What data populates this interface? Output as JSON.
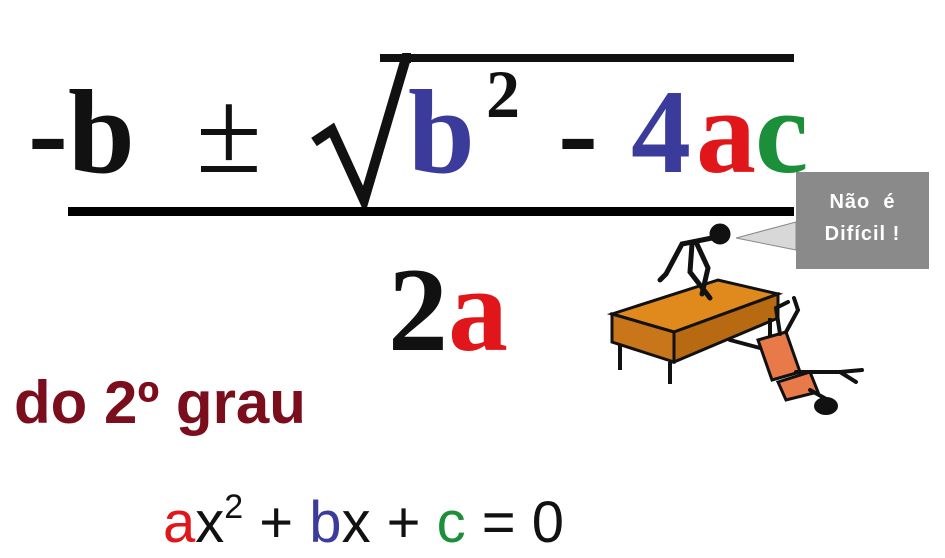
{
  "formula": {
    "numerator": {
      "minus_b": "-b",
      "plus_minus": "±",
      "b_squared": "b",
      "exponent": "2",
      "minus": "-",
      "four": "4",
      "a": "a",
      "c": "c"
    },
    "denominator": {
      "two": "2",
      "a": "a"
    }
  },
  "subtitle": "do 2º grau",
  "equation": {
    "a": "a",
    "x": "x",
    "exp": "2",
    "plus1": " + ",
    "b": "b",
    "x2": "x",
    "plus2": " + ",
    "c": "c",
    "equals": " = 0"
  },
  "speech_bubble": {
    "line1": "Não  é",
    "line2": "Difícil !"
  },
  "colors": {
    "black": "#111111",
    "blue": "#3b3b9c",
    "red": "#e0161b",
    "green": "#1c8f3a",
    "dark_red": "#7a0e1c",
    "bubble_gray": "#8a8a8a",
    "desk_orange": "#e08a1e"
  },
  "icons": [
    "radical-sign-icon",
    "person-on-desk-icon",
    "fallen-person-icon"
  ]
}
